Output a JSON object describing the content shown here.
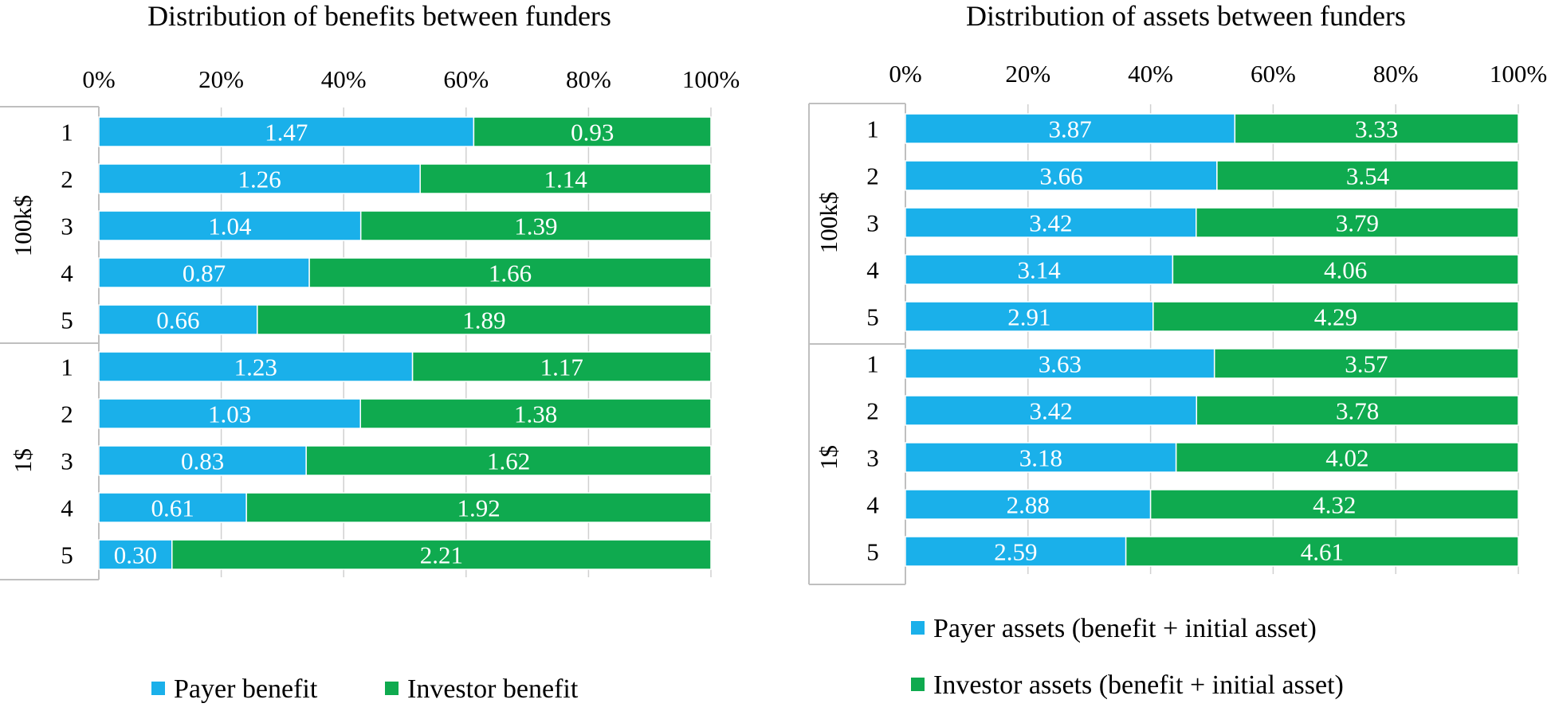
{
  "colors": {
    "payer": "#1ab0ea",
    "investor": "#0faa4f",
    "grid": "#d0d0d0",
    "axis": "#bfbfbf",
    "text": "#000000",
    "bar_label": "#ffffff"
  },
  "chart_data": [
    {
      "type": "bar",
      "orientation": "horizontal",
      "stacked": "percent",
      "title": "Distribution of benefits between funders",
      "x_ticks": [
        "0%",
        "20%",
        "40%",
        "60%",
        "80%",
        "100%"
      ],
      "xlim": [
        0,
        100
      ],
      "grid": true,
      "legend_position": "bottom",
      "groups": [
        {
          "label": "100k$",
          "categories": [
            "1",
            "2",
            "3",
            "4",
            "5"
          ]
        },
        {
          "label": "1$",
          "categories": [
            "1",
            "2",
            "3",
            "4",
            "5"
          ]
        }
      ],
      "series": [
        {
          "name": "Payer benefit",
          "color_key": "payer",
          "values": [
            1.47,
            1.26,
            1.04,
            0.87,
            0.66,
            1.23,
            1.03,
            0.83,
            0.61,
            0.3
          ],
          "labels": [
            "1.47",
            "1.26",
            "1.04",
            "0.87",
            "0.66",
            "1.23",
            "1.03",
            "0.83",
            "0.61",
            "0.30"
          ]
        },
        {
          "name": "Investor benefit",
          "color_key": "investor",
          "values": [
            0.93,
            1.14,
            1.39,
            1.66,
            1.89,
            1.17,
            1.38,
            1.62,
            1.92,
            2.21
          ],
          "labels": [
            "0.93",
            "1.14",
            "1.39",
            "1.66",
            "1.89",
            "1.17",
            "1.38",
            "1.62",
            "1.92",
            "2.21"
          ]
        }
      ]
    },
    {
      "type": "bar",
      "orientation": "horizontal",
      "stacked": "percent",
      "title": "Distribution of assets between funders",
      "x_ticks": [
        "0%",
        "20%",
        "40%",
        "60%",
        "80%",
        "100%"
      ],
      "xlim": [
        0,
        100
      ],
      "grid": true,
      "legend_position": "bottom",
      "groups": [
        {
          "label": "100k$",
          "categories": [
            "1",
            "2",
            "3",
            "4",
            "5"
          ]
        },
        {
          "label": "1$",
          "categories": [
            "1",
            "2",
            "3",
            "4",
            "5"
          ]
        }
      ],
      "series": [
        {
          "name": "Payer assets (benefit + initial asset)",
          "color_key": "payer",
          "values": [
            3.87,
            3.66,
            3.42,
            3.14,
            2.91,
            3.63,
            3.42,
            3.18,
            2.88,
            2.59
          ],
          "labels": [
            "3.87",
            "3.66",
            "3.42",
            "3.14",
            "2.91",
            "3.63",
            "3.42",
            "3.18",
            "2.88",
            "2.59"
          ]
        },
        {
          "name": "Investor assets (benefit + initial asset)",
          "color_key": "investor",
          "values": [
            3.33,
            3.54,
            3.79,
            4.06,
            4.29,
            3.57,
            3.78,
            4.02,
            4.32,
            4.61
          ],
          "labels": [
            "3.33",
            "3.54",
            "3.79",
            "4.06",
            "4.29",
            "3.57",
            "3.78",
            "4.02",
            "4.32",
            "4.61"
          ]
        }
      ]
    }
  ]
}
